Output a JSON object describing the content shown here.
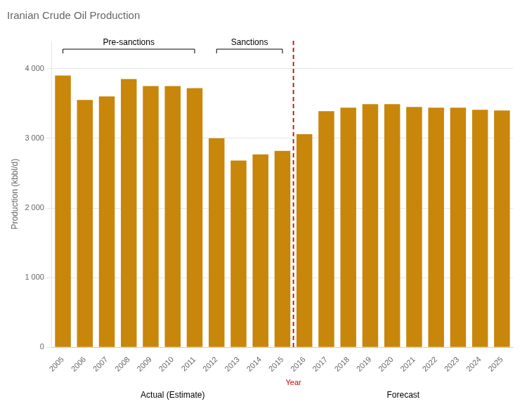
{
  "chart_data": {
    "type": "bar",
    "title": "Iranian Crude Oil Production",
    "categories": [
      "2005",
      "2006",
      "2007",
      "2008",
      "2009",
      "2010",
      "2011",
      "2012",
      "2013",
      "2014",
      "2015",
      "2016",
      "2017",
      "2018",
      "2019",
      "2020",
      "2021",
      "2022",
      "2023",
      "2024",
      "2025"
    ],
    "values": [
      3900,
      3550,
      3600,
      3850,
      3750,
      3750,
      3720,
      3000,
      2680,
      2770,
      2820,
      3060,
      3390,
      3440,
      3490,
      3490,
      3450,
      3440,
      3440,
      3410,
      3400
    ],
    "color": "#c8860a",
    "ylabel": "Production (kbbl/d)",
    "ylim": [
      0,
      4400
    ],
    "yticks": [
      0,
      {
        "value": 1000,
        "label": "1 000"
      },
      {
        "value": 2000,
        "label": "2 000"
      },
      {
        "value": 3000,
        "label": "3 000"
      },
      {
        "value": 4000,
        "label": "4 000"
      }
    ],
    "grid": "y",
    "divider": {
      "after": "2015",
      "color": "#cc0000",
      "line_style": "dashed",
      "label": "Year"
    },
    "brackets": [
      {
        "label": "Pre-sanctions",
        "from": "2005",
        "to": "2011"
      },
      {
        "label": "Sanctions",
        "from": "2012",
        "to": "2015"
      }
    ],
    "spans": [
      {
        "label": "Actual (Estimate)",
        "from": "2005",
        "to": "2015"
      },
      {
        "label": "Forecast",
        "from": "2016",
        "to": "2025"
      }
    ]
  }
}
